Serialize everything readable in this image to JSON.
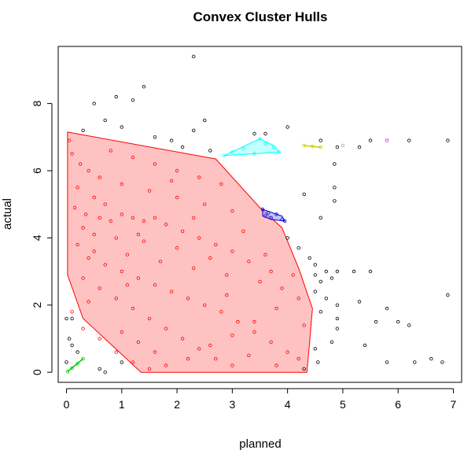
{
  "chart_data": {
    "type": "scatter",
    "title": "Convex Cluster Hulls",
    "xlabel": "planned",
    "ylabel": "actual",
    "xlim": [
      -0.15,
      7.15
    ],
    "ylim": [
      -0.3,
      9.7
    ],
    "x_ticks": [
      "0",
      "1",
      "2",
      "3",
      "4",
      "5",
      "6",
      "7"
    ],
    "x_tick_values": [
      0,
      1,
      2,
      3,
      4,
      5,
      6,
      7
    ],
    "y_ticks": [
      "0",
      "2",
      "4",
      "6",
      "8"
    ],
    "y_tick_values": [
      0,
      2,
      4,
      6,
      8
    ],
    "grid": false,
    "legend": "none",
    "clusters": [
      {
        "color": "#ff0000",
        "fill": "#ff9999",
        "hull": [
          [
            0.02,
            7.15
          ],
          [
            2.7,
            6.35
          ],
          [
            3.5,
            4.9
          ],
          [
            3.9,
            4.3
          ],
          [
            4.2,
            3.1
          ],
          [
            4.45,
            1.9
          ],
          [
            4.4,
            0.9
          ],
          [
            4.35,
            0.0
          ],
          [
            1.35,
            0.0
          ],
          [
            0.3,
            1.6
          ],
          [
            0.02,
            2.9
          ]
        ],
        "points": [
          [
            0.05,
            6.9
          ],
          [
            0.1,
            6.5
          ],
          [
            0.25,
            6.2
          ],
          [
            0.4,
            6.0
          ],
          [
            0.6,
            5.8
          ],
          [
            0.2,
            5.5
          ],
          [
            0.5,
            5.2
          ],
          [
            0.15,
            4.9
          ],
          [
            0.35,
            4.7
          ],
          [
            0.6,
            4.6
          ],
          [
            0.8,
            4.5
          ],
          [
            1.0,
            4.7
          ],
          [
            1.2,
            4.6
          ],
          [
            1.4,
            4.5
          ],
          [
            1.6,
            4.6
          ],
          [
            0.3,
            4.3
          ],
          [
            0.5,
            4.1
          ],
          [
            0.9,
            4.0
          ],
          [
            1.3,
            4.1
          ],
          [
            1.8,
            4.4
          ],
          [
            2.1,
            4.2
          ],
          [
            2.4,
            4.0
          ],
          [
            2.7,
            3.8
          ],
          [
            3.0,
            3.6
          ],
          [
            3.3,
            3.3
          ],
          [
            0.2,
            3.8
          ],
          [
            0.4,
            3.4
          ],
          [
            0.7,
            3.2
          ],
          [
            1.0,
            3.0
          ],
          [
            1.3,
            2.8
          ],
          [
            1.6,
            2.6
          ],
          [
            1.9,
            2.4
          ],
          [
            2.2,
            2.2
          ],
          [
            2.5,
            2.0
          ],
          [
            2.8,
            1.8
          ],
          [
            3.1,
            1.5
          ],
          [
            3.4,
            1.2
          ],
          [
            3.7,
            0.9
          ],
          [
            4.0,
            0.6
          ],
          [
            0.3,
            2.8
          ],
          [
            0.6,
            2.5
          ],
          [
            0.9,
            2.2
          ],
          [
            1.2,
            1.9
          ],
          [
            1.5,
            1.6
          ],
          [
            1.8,
            1.3
          ],
          [
            2.1,
            1.0
          ],
          [
            2.4,
            0.7
          ],
          [
            2.7,
            0.4
          ],
          [
            3.0,
            0.2
          ],
          [
            1.0,
            1.2
          ],
          [
            1.3,
            0.9
          ],
          [
            1.6,
            0.6
          ],
          [
            1.8,
            0.2
          ],
          [
            2.2,
            0.4
          ],
          [
            2.6,
            0.8
          ],
          [
            3.0,
            1.1
          ],
          [
            3.4,
            1.5
          ],
          [
            3.8,
            1.9
          ],
          [
            4.2,
            2.2
          ],
          [
            0.8,
            6.6
          ],
          [
            1.2,
            6.4
          ],
          [
            1.6,
            6.2
          ],
          [
            2.0,
            6.0
          ],
          [
            2.4,
            5.8
          ],
          [
            1.0,
            5.6
          ],
          [
            1.5,
            5.4
          ],
          [
            2.0,
            5.2
          ],
          [
            2.5,
            5.0
          ],
          [
            3.0,
            4.8
          ],
          [
            0.5,
            3.6
          ],
          [
            1.1,
            3.5
          ],
          [
            1.7,
            3.3
          ],
          [
            2.3,
            3.1
          ],
          [
            2.9,
            2.9
          ],
          [
            3.5,
            2.7
          ],
          [
            3.9,
            2.5
          ],
          [
            4.1,
            2.9
          ],
          [
            3.6,
            3.5
          ],
          [
            3.2,
            4.2
          ],
          [
            2.8,
            5.6
          ],
          [
            0.1,
            1.8
          ],
          [
            0.3,
            1.3
          ],
          [
            0.6,
            1.0
          ],
          [
            0.9,
            0.6
          ],
          [
            1.2,
            0.3
          ],
          [
            1.5,
            0.1
          ],
          [
            3.3,
            0.5
          ],
          [
            3.8,
            0.2
          ],
          [
            4.2,
            0.4
          ],
          [
            4.3,
            1.4
          ],
          [
            2.0,
            3.7
          ],
          [
            1.4,
            3.9
          ],
          [
            0.7,
            5.0
          ],
          [
            1.9,
            5.7
          ],
          [
            2.3,
            4.6
          ],
          [
            2.6,
            3.4
          ],
          [
            1.1,
            2.6
          ],
          [
            0.4,
            2.1
          ],
          [
            2.9,
            2.3
          ],
          [
            3.7,
            3.0
          ]
        ]
      },
      {
        "color": "#00ffff",
        "fill": "#99ffff",
        "hull": [
          [
            2.85,
            6.45
          ],
          [
            3.5,
            6.95
          ],
          [
            3.75,
            6.75
          ],
          [
            3.85,
            6.55
          ]
        ],
        "points": [
          [
            2.85,
            6.45
          ],
          [
            3.0,
            6.55
          ],
          [
            3.2,
            6.65
          ],
          [
            3.5,
            6.95
          ],
          [
            3.6,
            6.8
          ],
          [
            3.75,
            6.7
          ],
          [
            3.85,
            6.55
          ],
          [
            3.4,
            6.5
          ]
        ]
      },
      {
        "color": "#0000cc",
        "fill": "#9999ff",
        "hull": [
          [
            3.55,
            4.85
          ],
          [
            3.9,
            4.65
          ],
          [
            3.95,
            4.5
          ],
          [
            3.7,
            4.55
          ],
          [
            3.55,
            4.65
          ]
        ],
        "points": [
          [
            3.55,
            4.85
          ],
          [
            3.65,
            4.75
          ],
          [
            3.7,
            4.6
          ],
          [
            3.8,
            4.7
          ],
          [
            3.9,
            4.55
          ],
          [
            3.95,
            4.5
          ],
          [
            3.6,
            4.65
          ]
        ]
      },
      {
        "color": "#cccc00",
        "fill": "#ffff99",
        "hull": [
          [
            4.3,
            6.75
          ],
          [
            4.6,
            6.7
          ]
        ],
        "points": [
          [
            4.3,
            6.75
          ],
          [
            4.45,
            6.72
          ],
          [
            4.6,
            6.7
          ]
        ]
      },
      {
        "color": "#00cc00",
        "fill": "#99ff99",
        "hull": [
          [
            0.02,
            0.02
          ],
          [
            0.3,
            0.4
          ]
        ],
        "points": [
          [
            0.02,
            0.02
          ],
          [
            0.1,
            0.12
          ],
          [
            0.2,
            0.25
          ],
          [
            0.3,
            0.4
          ]
        ]
      },
      {
        "color": "#ff00ff",
        "fill": "#ff99ff",
        "hull": [],
        "points": [
          [
            5.8,
            6.9
          ]
        ]
      },
      {
        "color": "#aaaaaa",
        "fill": "#dddddd",
        "hull": [],
        "points": [
          [
            5.0,
            6.75
          ]
        ]
      }
    ],
    "noise_points": [
      [
        2.3,
        9.4
      ],
      [
        0.5,
        8.0
      ],
      [
        0.9,
        8.2
      ],
      [
        1.2,
        8.1
      ],
      [
        1.4,
        8.5
      ],
      [
        0.7,
        7.5
      ],
      [
        1.0,
        7.3
      ],
      [
        0.3,
        7.2
      ],
      [
        2.5,
        7.5
      ],
      [
        2.3,
        7.2
      ],
      [
        1.6,
        7.0
      ],
      [
        1.9,
        6.9
      ],
      [
        2.1,
        6.7
      ],
      [
        2.6,
        6.6
      ],
      [
        4.0,
        7.3
      ],
      [
        3.6,
        7.1
      ],
      [
        3.4,
        7.1
      ],
      [
        4.6,
        6.9
      ],
      [
        4.9,
        6.7
      ],
      [
        5.3,
        6.7
      ],
      [
        5.5,
        6.9
      ],
      [
        6.2,
        6.9
      ],
      [
        6.9,
        6.9
      ],
      [
        4.85,
        6.2
      ],
      [
        4.85,
        5.5
      ],
      [
        4.85,
        5.1
      ],
      [
        4.6,
        4.6
      ],
      [
        4.3,
        5.3
      ],
      [
        4.0,
        4.0
      ],
      [
        4.2,
        3.7
      ],
      [
        4.4,
        3.4
      ],
      [
        4.5,
        3.2
      ],
      [
        4.5,
        2.9
      ],
      [
        4.7,
        3.0
      ],
      [
        4.8,
        2.8
      ],
      [
        4.9,
        3.0
      ],
      [
        5.2,
        3.0
      ],
      [
        5.5,
        3.0
      ],
      [
        4.6,
        2.7
      ],
      [
        4.5,
        2.4
      ],
      [
        4.7,
        2.2
      ],
      [
        4.9,
        2.0
      ],
      [
        4.9,
        1.6
      ],
      [
        5.3,
        2.1
      ],
      [
        5.6,
        1.5
      ],
      [
        5.8,
        1.9
      ],
      [
        6.0,
        1.5
      ],
      [
        6.2,
        1.4
      ],
      [
        4.9,
        1.3
      ],
      [
        4.8,
        0.9
      ],
      [
        5.4,
        0.8
      ],
      [
        5.8,
        0.3
      ],
      [
        6.3,
        0.3
      ],
      [
        6.6,
        0.4
      ],
      [
        6.8,
        0.3
      ],
      [
        6.9,
        2.3
      ],
      [
        4.5,
        0.7
      ],
      [
        4.6,
        1.8
      ],
      [
        0.05,
        1.0
      ],
      [
        0.1,
        0.8
      ],
      [
        0.2,
        0.6
      ],
      [
        0.0,
        0.3
      ],
      [
        0.6,
        0.1
      ],
      [
        0.7,
        0.0
      ],
      [
        1.0,
        0.3
      ],
      [
        0.0,
        1.6
      ],
      [
        0.1,
        1.6
      ],
      [
        4.3,
        0.1
      ],
      [
        4.55,
        0.3
      ]
    ]
  }
}
